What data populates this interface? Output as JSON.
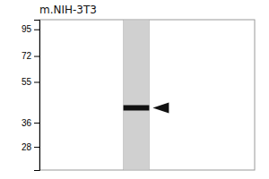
{
  "chart_data": {
    "type": "blot",
    "title": "m.NIH-3T3",
    "log": "y",
    "ylim": [
      22,
      105
    ],
    "yticks": [
      95,
      72,
      55,
      36,
      28
    ],
    "values": [
      42
    ],
    "color": "#111111",
    "tick_labels": "y",
    "grid": false
  }
}
